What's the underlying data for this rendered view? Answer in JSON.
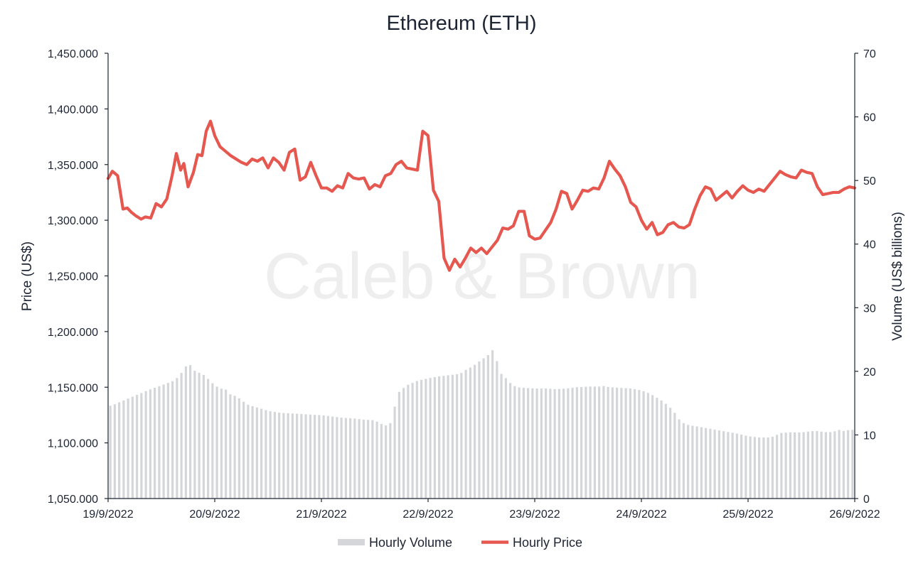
{
  "chart_data": {
    "type": "bar+line",
    "title": "Ethereum (ETH)",
    "watermark": "Caleb & Brown",
    "x_tick_labels": [
      "19/9/2022",
      "20/9/2022",
      "21/9/2022",
      "22/9/2022",
      "23/9/2022",
      "24/9/2022",
      "25/9/2022",
      "26/9/2022"
    ],
    "y_left": {
      "label": "Price (US$)",
      "ylim": [
        1050,
        1450
      ],
      "ticks": [
        1050,
        1100,
        1150,
        1200,
        1250,
        1300,
        1350,
        1400,
        1450
      ],
      "tick_labels": [
        "1,050.000",
        "1,100.000",
        "1,150.000",
        "1,200.000",
        "1,250.000",
        "1,300.000",
        "1,350.000",
        "1,400.000",
        "1,450.000"
      ]
    },
    "y_right": {
      "label": "Volume (US$ billions)",
      "ylim": [
        0,
        70
      ],
      "ticks": [
        0,
        10,
        20,
        30,
        40,
        50,
        60,
        70
      ],
      "tick_labels": [
        "0",
        "10",
        "20",
        "30",
        "40",
        "50",
        "60",
        "70"
      ]
    },
    "x_days": [
      0,
      7
    ],
    "grid": false,
    "legend_position": "bottom-center",
    "series": [
      {
        "name": "Hourly Volume",
        "kind": "bar",
        "axis": "right",
        "color": "#d4d6da",
        "points": [
          [
            0.03,
            14.6
          ],
          [
            0.37,
            17.0
          ],
          [
            0.5,
            17.8
          ],
          [
            0.6,
            18.4
          ],
          [
            0.65,
            19.0
          ],
          [
            0.7,
            20.0
          ],
          [
            0.73,
            20.8
          ],
          [
            0.77,
            21.0
          ],
          [
            0.8,
            20.2
          ],
          [
            0.85,
            19.8
          ],
          [
            0.9,
            19.4
          ],
          [
            0.95,
            18.6
          ],
          [
            1.0,
            17.8
          ],
          [
            1.05,
            17.3
          ],
          [
            1.1,
            17.2
          ],
          [
            1.15,
            16.3
          ],
          [
            1.2,
            16.1
          ],
          [
            1.25,
            15.5
          ],
          [
            1.3,
            14.8
          ],
          [
            1.4,
            14.3
          ],
          [
            1.5,
            13.8
          ],
          [
            1.6,
            13.5
          ],
          [
            1.7,
            13.4
          ],
          [
            1.8,
            13.3
          ],
          [
            1.9,
            13.2
          ],
          [
            2.0,
            13.1
          ],
          [
            2.1,
            12.9
          ],
          [
            2.2,
            12.7
          ],
          [
            2.3,
            12.6
          ],
          [
            2.4,
            12.4
          ],
          [
            2.5,
            12.3
          ],
          [
            2.55,
            11.8
          ],
          [
            2.62,
            11.4
          ],
          [
            2.67,
            12.3
          ],
          [
            2.7,
            16.0
          ],
          [
            2.73,
            16.8
          ],
          [
            2.8,
            17.8
          ],
          [
            2.9,
            18.5
          ],
          [
            3.0,
            18.9
          ],
          [
            3.1,
            19.2
          ],
          [
            3.2,
            19.4
          ],
          [
            3.3,
            19.6
          ],
          [
            3.35,
            20.2
          ],
          [
            3.42,
            20.8
          ],
          [
            3.5,
            21.8
          ],
          [
            3.56,
            22.5
          ],
          [
            3.6,
            23.3
          ],
          [
            3.63,
            23.4
          ],
          [
            3.66,
            20.0
          ],
          [
            3.72,
            19.1
          ],
          [
            3.78,
            18.0
          ],
          [
            3.83,
            17.5
          ],
          [
            3.9,
            17.4
          ],
          [
            4.0,
            17.3
          ],
          [
            4.1,
            17.3
          ],
          [
            4.2,
            17.2
          ],
          [
            4.3,
            17.3
          ],
          [
            4.4,
            17.5
          ],
          [
            4.5,
            17.6
          ],
          [
            4.6,
            17.6
          ],
          [
            4.65,
            17.7
          ],
          [
            4.7,
            17.5
          ],
          [
            4.8,
            17.4
          ],
          [
            4.9,
            17.3
          ],
          [
            5.0,
            17.0
          ],
          [
            5.05,
            16.7
          ],
          [
            5.1,
            16.3
          ],
          [
            5.15,
            15.8
          ],
          [
            5.2,
            15.3
          ],
          [
            5.25,
            14.6
          ],
          [
            5.3,
            13.8
          ],
          [
            5.35,
            12.5
          ],
          [
            5.4,
            11.8
          ],
          [
            5.45,
            11.5
          ],
          [
            5.5,
            11.4
          ],
          [
            5.6,
            11.1
          ],
          [
            5.7,
            10.8
          ],
          [
            5.8,
            10.5
          ],
          [
            5.9,
            10.2
          ],
          [
            6.0,
            9.8
          ],
          [
            6.1,
            9.6
          ],
          [
            6.15,
            9.6
          ],
          [
            6.2,
            9.6
          ],
          [
            6.25,
            9.8
          ],
          [
            6.3,
            10.3
          ],
          [
            6.4,
            10.4
          ],
          [
            6.5,
            10.4
          ],
          [
            6.55,
            10.5
          ],
          [
            6.6,
            10.6
          ],
          [
            6.65,
            10.6
          ],
          [
            6.7,
            10.5
          ],
          [
            6.75,
            10.4
          ],
          [
            6.8,
            10.5
          ],
          [
            6.85,
            10.8
          ],
          [
            6.9,
            10.6
          ],
          [
            6.95,
            10.8
          ],
          [
            7.0,
            10.8
          ]
        ]
      },
      {
        "name": "Hourly Price",
        "kind": "line",
        "axis": "left",
        "color": "#e5574f",
        "points": [
          [
            0.0,
            1337.5
          ],
          [
            0.04,
            1344
          ],
          [
            0.09,
            1340
          ],
          [
            0.14,
            1310
          ],
          [
            0.18,
            1311
          ],
          [
            0.22,
            1307
          ],
          [
            0.26,
            1304
          ],
          [
            0.31,
            1301
          ],
          [
            0.35,
            1303
          ],
          [
            0.4,
            1302
          ],
          [
            0.45,
            1315
          ],
          [
            0.5,
            1312
          ],
          [
            0.55,
            1319
          ],
          [
            0.6,
            1340
          ],
          [
            0.64,
            1360
          ],
          [
            0.68,
            1345
          ],
          [
            0.71,
            1351
          ],
          [
            0.75,
            1330
          ],
          [
            0.8,
            1343
          ],
          [
            0.84,
            1359
          ],
          [
            0.88,
            1358
          ],
          [
            0.92,
            1380
          ],
          [
            0.96,
            1389
          ],
          [
            1.0,
            1376
          ],
          [
            1.05,
            1366
          ],
          [
            1.1,
            1362
          ],
          [
            1.15,
            1358
          ],
          [
            1.2,
            1355
          ],
          [
            1.25,
            1352
          ],
          [
            1.3,
            1350
          ],
          [
            1.35,
            1355
          ],
          [
            1.4,
            1353
          ],
          [
            1.45,
            1356
          ],
          [
            1.5,
            1347
          ],
          [
            1.55,
            1356
          ],
          [
            1.6,
            1352
          ],
          [
            1.65,
            1345
          ],
          [
            1.7,
            1361
          ],
          [
            1.75,
            1364
          ],
          [
            1.8,
            1336
          ],
          [
            1.85,
            1339
          ],
          [
            1.9,
            1352
          ],
          [
            1.95,
            1340
          ],
          [
            2.0,
            1329
          ],
          [
            2.05,
            1329
          ],
          [
            2.1,
            1326
          ],
          [
            2.15,
            1331
          ],
          [
            2.2,
            1329
          ],
          [
            2.25,
            1342
          ],
          [
            2.3,
            1338
          ],
          [
            2.35,
            1337
          ],
          [
            2.4,
            1338
          ],
          [
            2.45,
            1328
          ],
          [
            2.5,
            1332
          ],
          [
            2.55,
            1330
          ],
          [
            2.6,
            1340
          ],
          [
            2.65,
            1342
          ],
          [
            2.7,
            1350
          ],
          [
            2.75,
            1353
          ],
          [
            2.8,
            1347
          ],
          [
            2.85,
            1346
          ],
          [
            2.9,
            1345
          ],
          [
            2.95,
            1380
          ],
          [
            3.0,
            1376
          ],
          [
            3.05,
            1327
          ],
          [
            3.1,
            1317
          ],
          [
            3.15,
            1266
          ],
          [
            3.2,
            1255
          ],
          [
            3.25,
            1265
          ],
          [
            3.3,
            1258
          ],
          [
            3.35,
            1266
          ],
          [
            3.4,
            1275
          ],
          [
            3.45,
            1271
          ],
          [
            3.5,
            1275
          ],
          [
            3.55,
            1270
          ],
          [
            3.6,
            1276
          ],
          [
            3.65,
            1282
          ],
          [
            3.7,
            1293
          ],
          [
            3.75,
            1292
          ],
          [
            3.8,
            1295
          ],
          [
            3.85,
            1308
          ],
          [
            3.9,
            1308
          ],
          [
            3.95,
            1286
          ],
          [
            4.0,
            1283
          ],
          [
            4.05,
            1284
          ],
          [
            4.1,
            1291
          ],
          [
            4.15,
            1298
          ],
          [
            4.2,
            1310
          ],
          [
            4.25,
            1326
          ],
          [
            4.3,
            1324
          ],
          [
            4.35,
            1310
          ],
          [
            4.4,
            1318
          ],
          [
            4.45,
            1327
          ],
          [
            4.5,
            1326
          ],
          [
            4.55,
            1329
          ],
          [
            4.6,
            1328
          ],
          [
            4.65,
            1338
          ],
          [
            4.7,
            1353
          ],
          [
            4.75,
            1346
          ],
          [
            4.8,
            1340
          ],
          [
            4.85,
            1330
          ],
          [
            4.9,
            1316
          ],
          [
            4.95,
            1312
          ],
          [
            5.0,
            1300
          ],
          [
            5.05,
            1292
          ],
          [
            5.1,
            1298
          ],
          [
            5.15,
            1287
          ],
          [
            5.2,
            1289
          ],
          [
            5.25,
            1296
          ],
          [
            5.3,
            1298
          ],
          [
            5.35,
            1294
          ],
          [
            5.4,
            1293
          ],
          [
            5.45,
            1296
          ],
          [
            5.5,
            1310
          ],
          [
            5.55,
            1322
          ],
          [
            5.6,
            1330
          ],
          [
            5.65,
            1328
          ],
          [
            5.7,
            1318
          ],
          [
            5.75,
            1322
          ],
          [
            5.8,
            1326
          ],
          [
            5.85,
            1320
          ],
          [
            5.9,
            1326
          ],
          [
            5.95,
            1331
          ],
          [
            6.0,
            1327
          ],
          [
            6.05,
            1325
          ],
          [
            6.1,
            1328
          ],
          [
            6.15,
            1326
          ],
          [
            6.2,
            1332
          ],
          [
            6.25,
            1338
          ],
          [
            6.3,
            1344
          ],
          [
            6.35,
            1341
          ],
          [
            6.4,
            1339
          ],
          [
            6.45,
            1338
          ],
          [
            6.5,
            1345
          ],
          [
            6.55,
            1343
          ],
          [
            6.6,
            1342
          ],
          [
            6.65,
            1330
          ],
          [
            6.7,
            1323
          ],
          [
            6.75,
            1324
          ],
          [
            6.8,
            1325
          ],
          [
            6.85,
            1325
          ],
          [
            6.9,
            1328
          ],
          [
            6.95,
            1330
          ],
          [
            7.0,
            1329
          ]
        ]
      }
    ]
  }
}
